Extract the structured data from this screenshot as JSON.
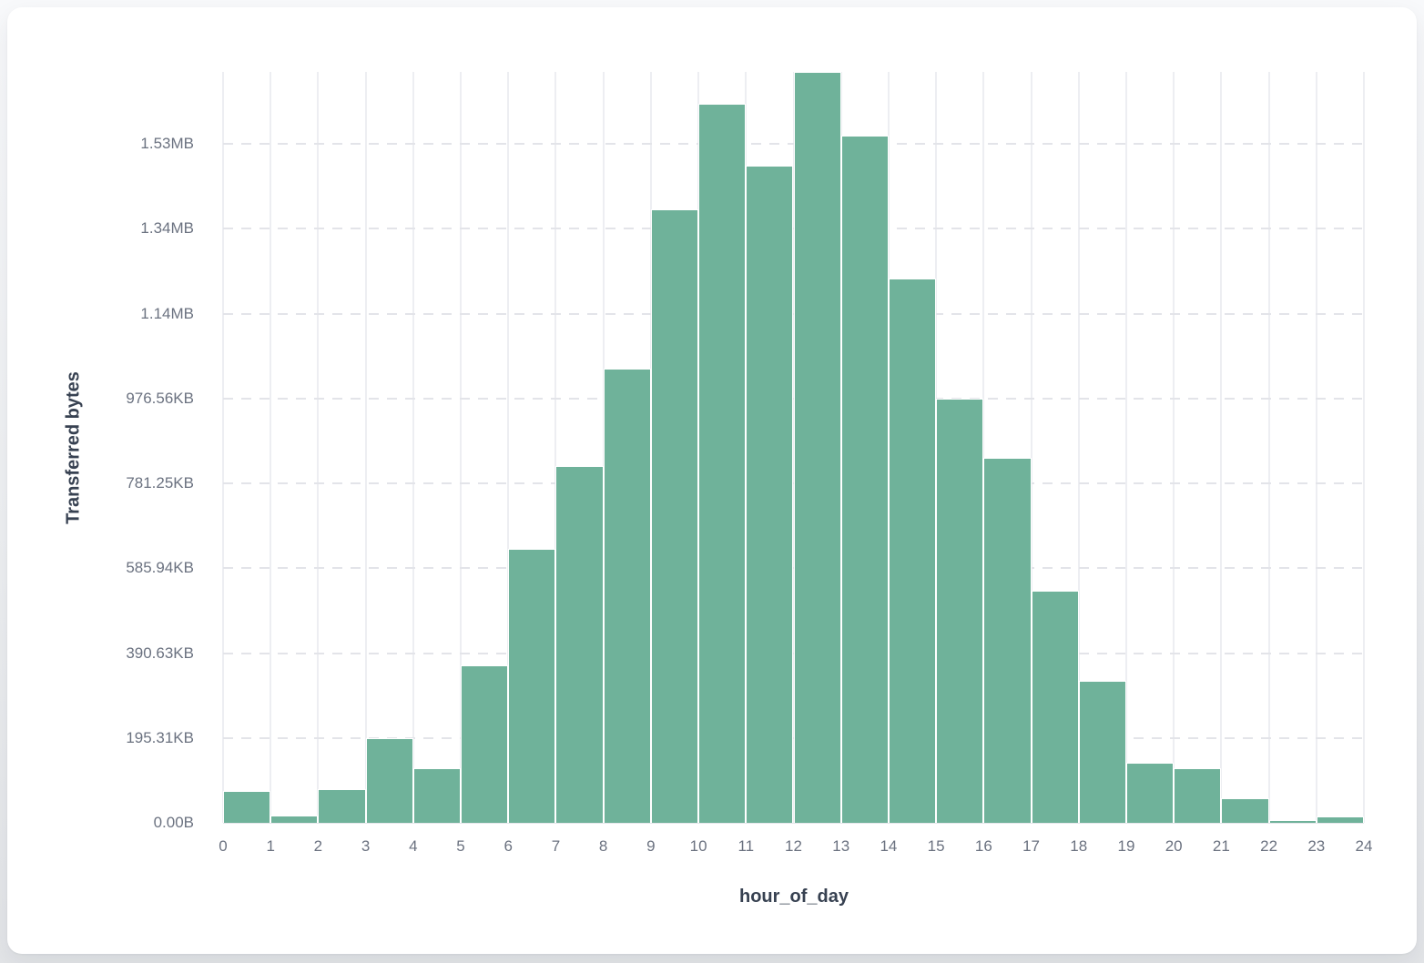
{
  "card": {
    "background": "#ffffff"
  },
  "chart_data": {
    "type": "bar",
    "subtype": "histogram",
    "title": "",
    "xlabel": "hour_of_day",
    "ylabel": "Transferred bytes",
    "legend": "none",
    "grid": {
      "vertical": "solid",
      "horizontal": "dashed"
    },
    "bar_color": "#6fb29a",
    "gridline_color": "#edeef2",
    "dashed_gridline_color": "#e3e4e9",
    "tick_label_color": "#6b7280",
    "axis_title_color": "#374151",
    "categories": [
      0,
      1,
      2,
      3,
      4,
      5,
      6,
      7,
      8,
      9,
      10,
      11,
      12,
      13,
      14,
      15,
      16,
      17,
      18,
      19,
      20,
      21,
      22,
      23
    ],
    "values_bytes": [
      75000,
      18000,
      80000,
      199000,
      128000,
      371000,
      645000,
      841000,
      1071000,
      1447000,
      1694000,
      1548000,
      1770000,
      1620000,
      1284000,
      1000000,
      861000,
      548000,
      334000,
      141000,
      128000,
      59000,
      5500,
      14000
    ],
    "x_tick_labels": [
      "0",
      "1",
      "2",
      "3",
      "4",
      "5",
      "6",
      "7",
      "8",
      "9",
      "10",
      "11",
      "12",
      "13",
      "14",
      "15",
      "16",
      "17",
      "18",
      "19",
      "20",
      "21",
      "22",
      "23",
      "24"
    ],
    "y_ticks": [
      {
        "value": 0,
        "label": "0.00B"
      },
      {
        "value": 200000,
        "label": "195.31KB"
      },
      {
        "value": 400000,
        "label": "390.63KB"
      },
      {
        "value": 600000,
        "label": "585.94KB"
      },
      {
        "value": 800000,
        "label": "781.25KB"
      },
      {
        "value": 1000000,
        "label": "976.56KB"
      },
      {
        "value": 1200000,
        "label": "1.14MB"
      },
      {
        "value": 1400000,
        "label": "1.34MB"
      },
      {
        "value": 1600000,
        "label": "1.53MB"
      }
    ],
    "ylim": [
      0,
      1770000
    ],
    "xlim": [
      0,
      24
    ]
  }
}
